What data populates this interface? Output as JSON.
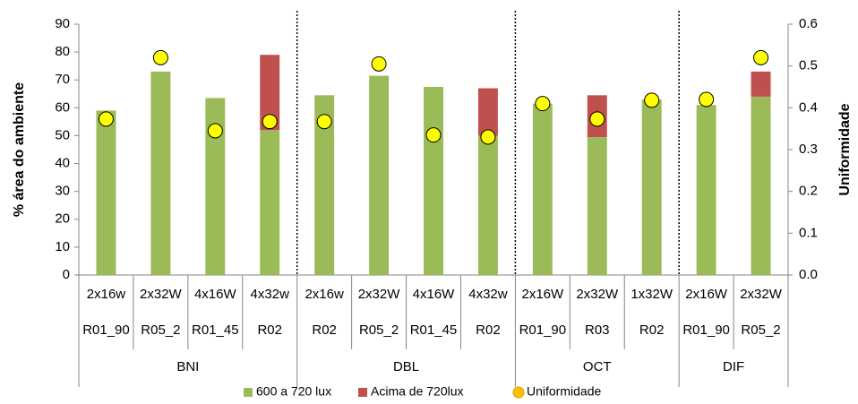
{
  "chart_data": {
    "type": "bar",
    "stacked": true,
    "y_label": "% área do ambiente",
    "y2_label": "Uniformidade",
    "groups": [
      {
        "name": "BNI",
        "categories": [
          "2x16w",
          "2x32W",
          "4x16W",
          "4x32w"
        ],
        "subcategories": [
          "R01_90",
          "R05_2",
          "R01_45",
          "R02"
        ]
      },
      {
        "name": "DBL",
        "categories": [
          "2x16w",
          "2x32W",
          "4x16W",
          "4x32w"
        ],
        "subcategories": [
          "R02",
          "R05_2",
          "R01_45",
          "R02"
        ]
      },
      {
        "name": "OCT",
        "categories": [
          "2x16W",
          "2x32W",
          "1x32W"
        ],
        "subcategories": [
          "R01_90",
          "R03",
          "R02"
        ]
      },
      {
        "name": "DIF",
        "categories": [
          "2x16W",
          "2x32W"
        ],
        "subcategories": [
          "R01_90",
          "R05_2"
        ]
      }
    ],
    "series": [
      {
        "name": "600 a 720 lux",
        "color": "#9bbb59",
        "values": [
          59,
          73,
          63.5,
          52,
          64.5,
          71.5,
          67.5,
          50,
          61.5,
          49.5,
          63,
          61,
          64
        ]
      },
      {
        "name": "Acima de 720lux",
        "color": "#c0504d",
        "values": [
          0,
          0,
          0,
          27,
          0,
          0,
          0,
          17,
          0,
          15,
          0,
          0,
          9
        ]
      },
      {
        "name": "Uniformidade",
        "color": "#ffff00",
        "type": "scatter",
        "axis": "y2",
        "values": [
          0.373,
          0.52,
          0.345,
          0.367,
          0.367,
          0.505,
          0.335,
          0.33,
          0.41,
          0.373,
          0.418,
          0.42,
          0.52
        ]
      }
    ],
    "ylim": [
      0,
      90
    ],
    "yticks": [
      0,
      10,
      20,
      30,
      40,
      50,
      60,
      70,
      80,
      90
    ],
    "y2lim": [
      0,
      0.6
    ],
    "y2ticks": [
      {
        "value": 0,
        "label": "0.0"
      },
      0.1,
      0.2,
      0.3,
      0.4,
      0.5,
      0.6
    ],
    "legend": "bottom"
  }
}
